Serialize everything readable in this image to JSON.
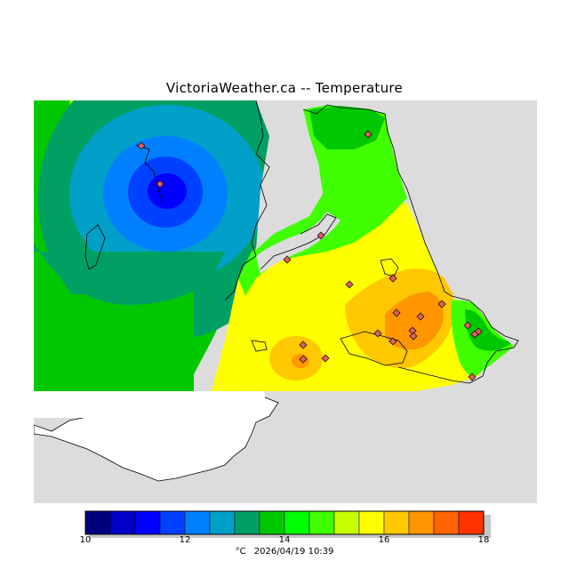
{
  "title": "VictoriaWeather.ca -- Temperature",
  "legend": {
    "min": 10,
    "max": 18,
    "tick_labels": [
      "10",
      "12",
      "14",
      "16",
      "18"
    ],
    "colors": [
      "#00007f",
      "#0000c8",
      "#0000ff",
      "#0040ff",
      "#0080ff",
      "#00a0c8",
      "#00a064",
      "#00c800",
      "#00ff00",
      "#40ff00",
      "#c8ff00",
      "#ffff00",
      "#ffc800",
      "#ff9600",
      "#ff6400",
      "#ff3200"
    ],
    "unit": "°C",
    "timestamp": "2026/04/19 10:39"
  },
  "stations": [
    {
      "id": "s1"
    },
    {
      "id": "s2"
    },
    {
      "id": "s3"
    },
    {
      "id": "s4"
    },
    {
      "id": "s5"
    },
    {
      "id": "s6"
    },
    {
      "id": "s7"
    },
    {
      "id": "s8"
    },
    {
      "id": "s9"
    },
    {
      "id": "s10"
    },
    {
      "id": "s11"
    },
    {
      "id": "s12"
    },
    {
      "id": "s13"
    },
    {
      "id": "s14"
    },
    {
      "id": "s15"
    },
    {
      "id": "s16"
    },
    {
      "id": "s17"
    },
    {
      "id": "s18"
    },
    {
      "id": "s19"
    },
    {
      "id": "s20"
    },
    {
      "id": "s21"
    }
  ]
}
